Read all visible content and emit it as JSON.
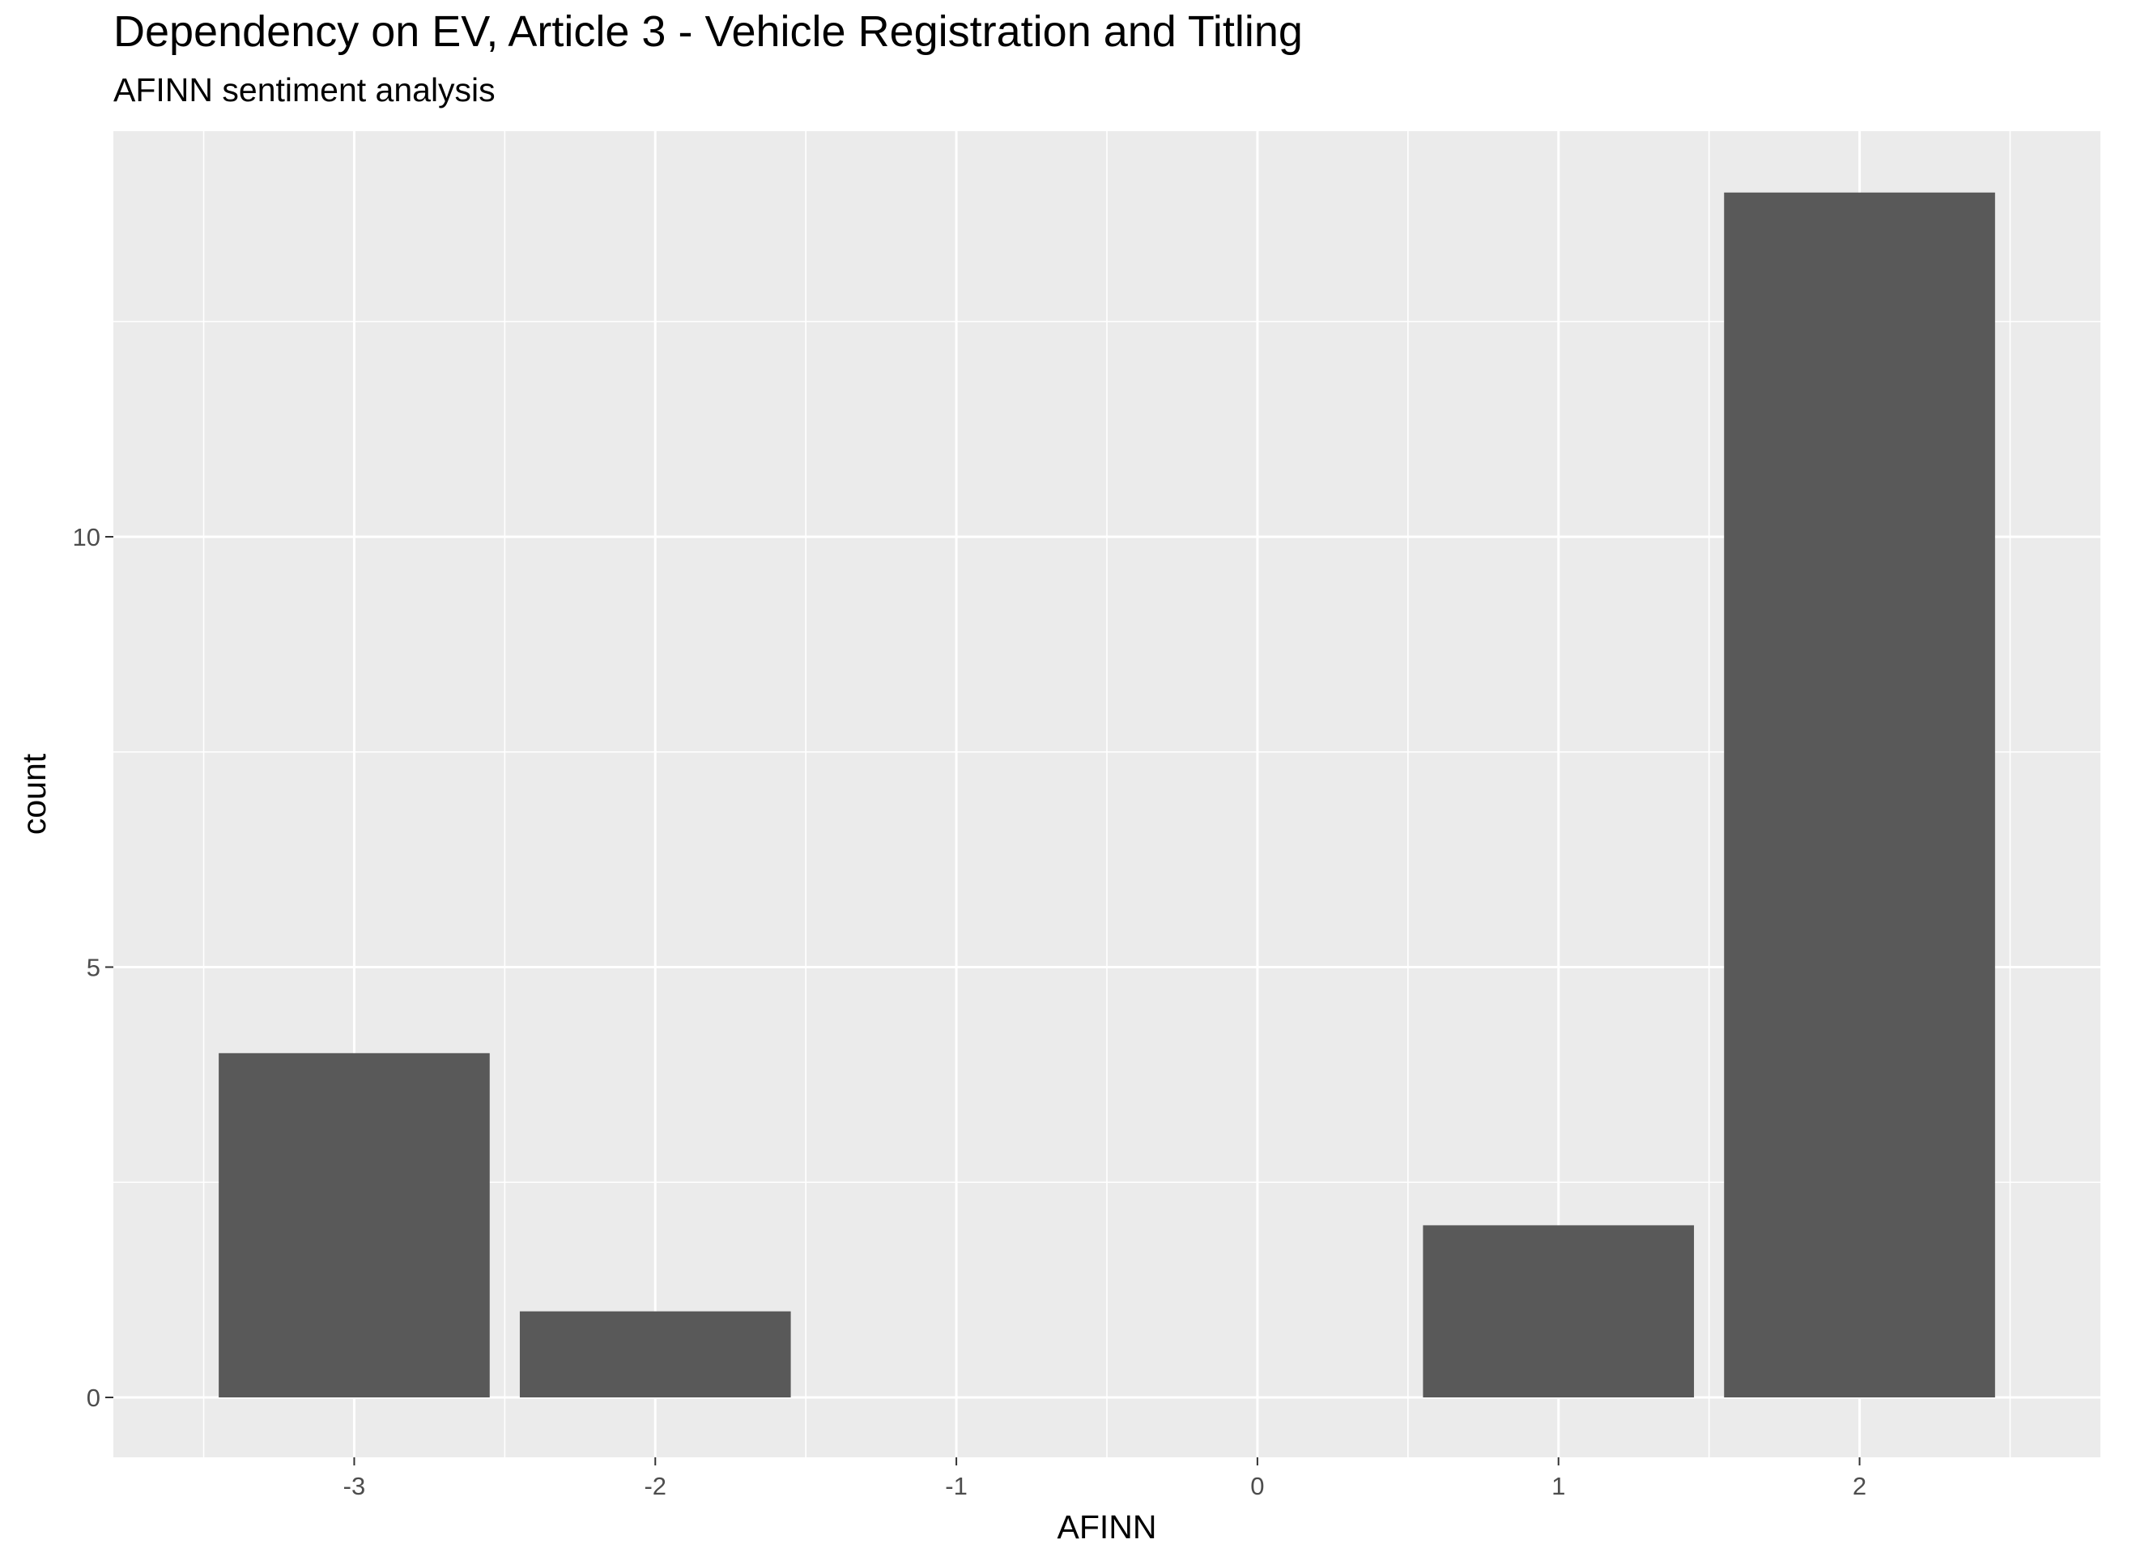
{
  "chart_data": {
    "type": "bar",
    "title": "Dependency on EV, Article 3 - Vehicle Registration and Titling",
    "subtitle": "AFINN sentiment analysis",
    "xlabel": "AFINN",
    "ylabel": "count",
    "categories": [
      "-3",
      "-2",
      "-1",
      "0",
      "1",
      "2"
    ],
    "x": [
      -3,
      -2,
      1,
      2
    ],
    "values": [
      4,
      1,
      2,
      14
    ],
    "xlim": [
      -3.5,
      2.5
    ],
    "ylim": [
      0,
      14
    ],
    "y_ticks": [
      0,
      5,
      10
    ],
    "grid": true,
    "colors": {
      "panel": "#ebebeb",
      "grid": "#ffffff",
      "bar": "#595959",
      "tick": "#333333",
      "tick_text": "#4d4d4d"
    }
  }
}
